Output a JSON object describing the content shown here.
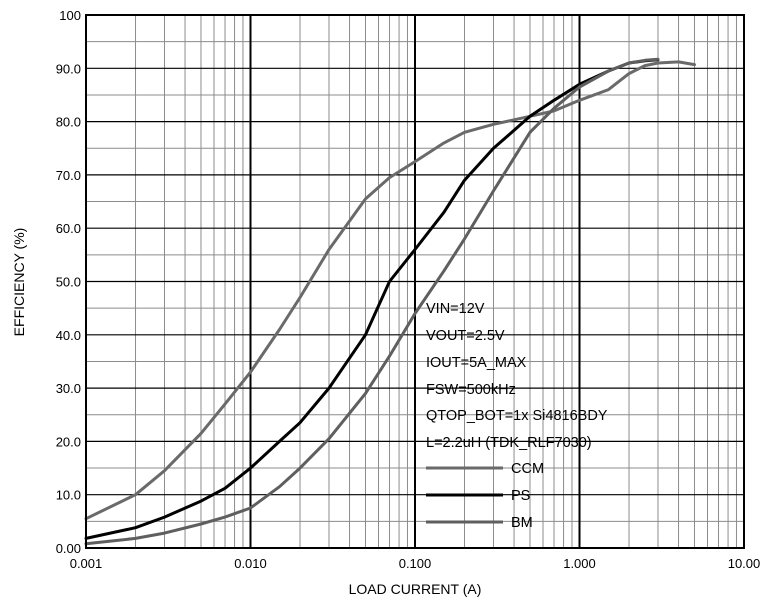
{
  "chart_data": {
    "type": "line",
    "title": "",
    "xlabel": "LOAD CURRENT (A)",
    "ylabel": "EFFICIENCY (%)",
    "xscale": "log",
    "xlim": [
      0.001,
      10
    ],
    "ylim": [
      0,
      100
    ],
    "x_ticks": [
      0.001,
      0.01,
      0.1,
      1,
      10
    ],
    "x_tick_labels": [
      "0.001",
      "0.010",
      "0.100",
      "1.000",
      "10.00"
    ],
    "y_ticks": [
      0,
      10,
      20,
      30,
      40,
      50,
      60,
      70,
      80,
      90,
      100
    ],
    "y_tick_labels": [
      "0.00",
      "10.0",
      "20.0",
      "30.0",
      "40.0",
      "50.0",
      "60.0",
      "70.0",
      "80.0",
      "90.0",
      "100"
    ],
    "grid": true,
    "annotations": [
      "VIN=12V",
      "VOUT=2.5V",
      "IOUT=5A_MAX",
      "FSW=500kHz",
      "QTOP_BOT=1x Si4816BDY",
      "L=2.2uH (TDK_RLF7030)"
    ],
    "legend_position": "bottom-center",
    "series": [
      {
        "name": "CCM",
        "color": "#6a6a6a",
        "x": [
          0.001,
          0.002,
          0.003,
          0.005,
          0.007,
          0.01,
          0.015,
          0.02,
          0.03,
          0.05,
          0.07,
          0.1,
          0.15,
          0.2,
          0.3,
          0.5,
          0.7,
          1.0,
          1.5,
          2.0,
          2.5,
          3.0,
          4.0,
          5.0
        ],
        "values": [
          5.5,
          10,
          14.5,
          21.5,
          27,
          33,
          41,
          47,
          56,
          65.5,
          69.5,
          72.5,
          76,
          78,
          79.5,
          81,
          82,
          84,
          86,
          89,
          90.5,
          91,
          91.2,
          90.7
        ]
      },
      {
        "name": "PS",
        "color": "#000000",
        "x": [
          0.001,
          0.002,
          0.003,
          0.005,
          0.007,
          0.01,
          0.015,
          0.02,
          0.03,
          0.05,
          0.07,
          0.1,
          0.15,
          0.2,
          0.3,
          0.5,
          0.7,
          1.0,
          1.5,
          2.0,
          2.5,
          3.0
        ],
        "values": [
          1.8,
          3.8,
          5.8,
          8.8,
          11.2,
          15,
          20,
          23.5,
          30,
          40,
          50,
          56,
          63,
          69,
          75,
          81,
          84,
          87,
          89.5,
          91,
          91.4,
          91.6
        ]
      },
      {
        "name": "BM",
        "color": "#5f5f5f",
        "x": [
          0.001,
          0.002,
          0.003,
          0.005,
          0.007,
          0.01,
          0.015,
          0.02,
          0.03,
          0.05,
          0.07,
          0.1,
          0.15,
          0.2,
          0.3,
          0.5,
          0.7,
          1.0,
          1.5,
          2.0,
          2.5,
          3.0
        ],
        "values": [
          0.8,
          1.8,
          2.8,
          4.5,
          5.8,
          7.5,
          11.5,
          15,
          20.5,
          29,
          36,
          44,
          52,
          58,
          67,
          78,
          82.5,
          86.5,
          89.5,
          91,
          91.5,
          91.7
        ]
      }
    ]
  }
}
